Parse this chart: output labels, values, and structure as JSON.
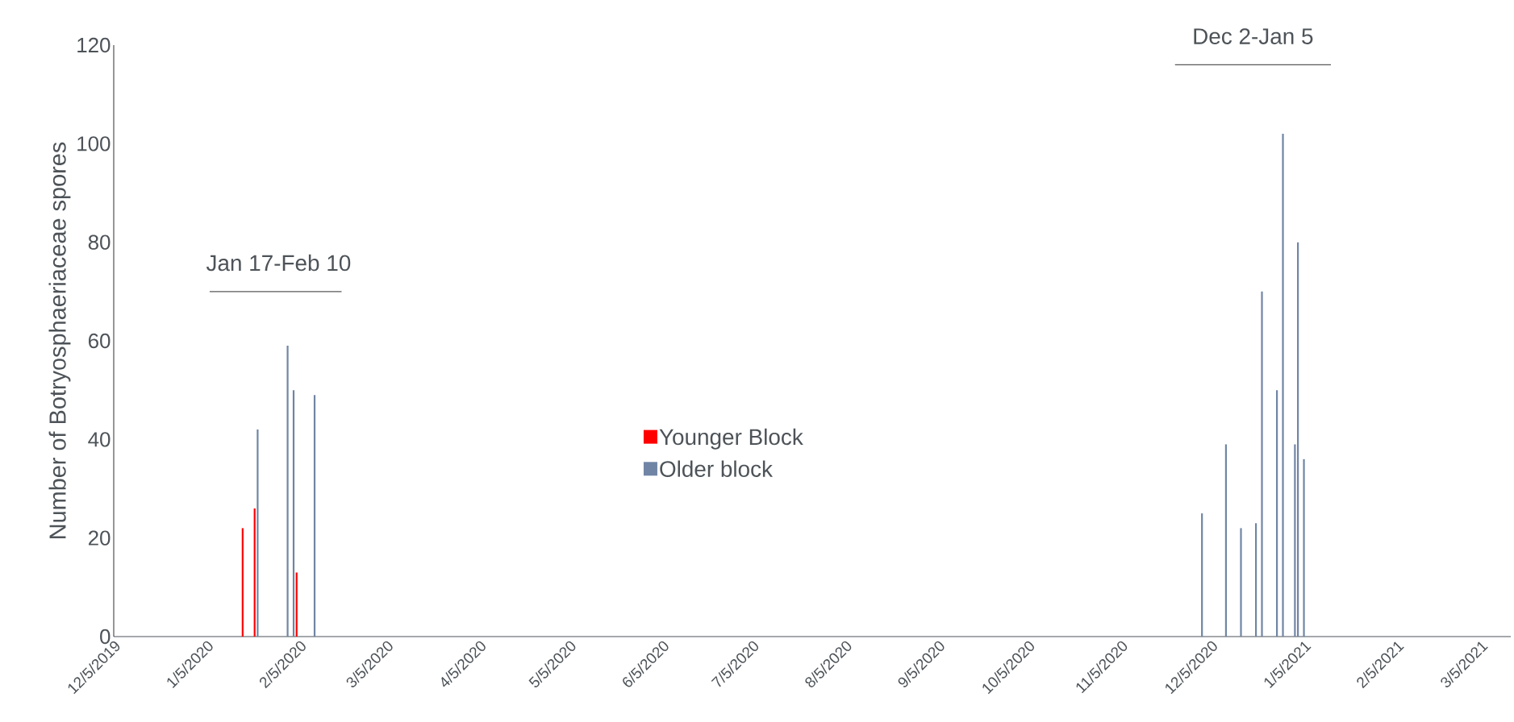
{
  "chart_data": {
    "type": "bar",
    "ylabel": "Number of Botryosphaeriaceae spores",
    "xlim": [
      "2019-12-05",
      "2021-03-15"
    ],
    "xticks": [
      {
        "value": "2019-12-05",
        "label": "12/5/2019"
      },
      {
        "value": "2020-01-05",
        "label": "1/5/2020"
      },
      {
        "value": "2020-02-05",
        "label": "2/5/2020"
      },
      {
        "value": "2020-03-05",
        "label": "3/5/2020"
      },
      {
        "value": "2020-04-05",
        "label": "4/5/2020"
      },
      {
        "value": "2020-05-05",
        "label": "5/5/2020"
      },
      {
        "value": "2020-06-05",
        "label": "6/5/2020"
      },
      {
        "value": "2020-07-05",
        "label": "7/5/2020"
      },
      {
        "value": "2020-08-05",
        "label": "8/5/2020"
      },
      {
        "value": "2020-09-05",
        "label": "9/5/2020"
      },
      {
        "value": "2020-10-05",
        "label": "10/5/2020"
      },
      {
        "value": "2020-11-05",
        "label": "11/5/2020"
      },
      {
        "value": "2020-12-05",
        "label": "12/5/2020"
      },
      {
        "value": "2021-01-05",
        "label": "1/5/2021"
      },
      {
        "value": "2021-02-05",
        "label": "2/5/2021"
      },
      {
        "value": "2021-03-05",
        "label": "3/5/2021"
      }
    ],
    "ylim": [
      0,
      120
    ],
    "yticks": [
      0,
      20,
      40,
      60,
      80,
      100,
      120
    ],
    "legend": "center",
    "series": [
      {
        "name": "Younger Block",
        "color": "#ff0000",
        "x": [
          "2020-01-17",
          "2020-01-21",
          "2020-02-04"
        ],
        "values": [
          22,
          26,
          13
        ]
      },
      {
        "name": "Older block",
        "color": "#7085a5",
        "x": [
          "2020-01-22",
          "2020-02-01",
          "2020-02-03",
          "2020-02-10",
          "2020-12-02",
          "2020-12-10",
          "2020-12-15",
          "2020-12-20",
          "2020-12-22",
          "2020-12-27",
          "2020-12-29",
          "2021-01-02",
          "2021-01-03",
          "2021-01-05"
        ],
        "values": [
          42,
          59,
          50,
          49,
          25,
          39,
          22,
          23,
          70,
          50,
          102,
          39,
          80,
          36
        ]
      },
      {
        "type": "line",
        "color": "#595959",
        "x": [
          "2020-01-06",
          "2020-02-19"
        ],
        "values": [
          70,
          70
        ]
      },
      {
        "type": "line",
        "color": "#595959",
        "x": [
          "2020-11-23",
          "2021-01-14"
        ],
        "values": [
          116,
          116
        ]
      }
    ],
    "annotations": [
      {
        "text": "Jan 17-Feb 10",
        "x": "2020-01-29",
        "y": 70
      },
      {
        "text": "Dec 2-Jan 5",
        "x": "2020-12-19",
        "y": 116
      }
    ]
  }
}
